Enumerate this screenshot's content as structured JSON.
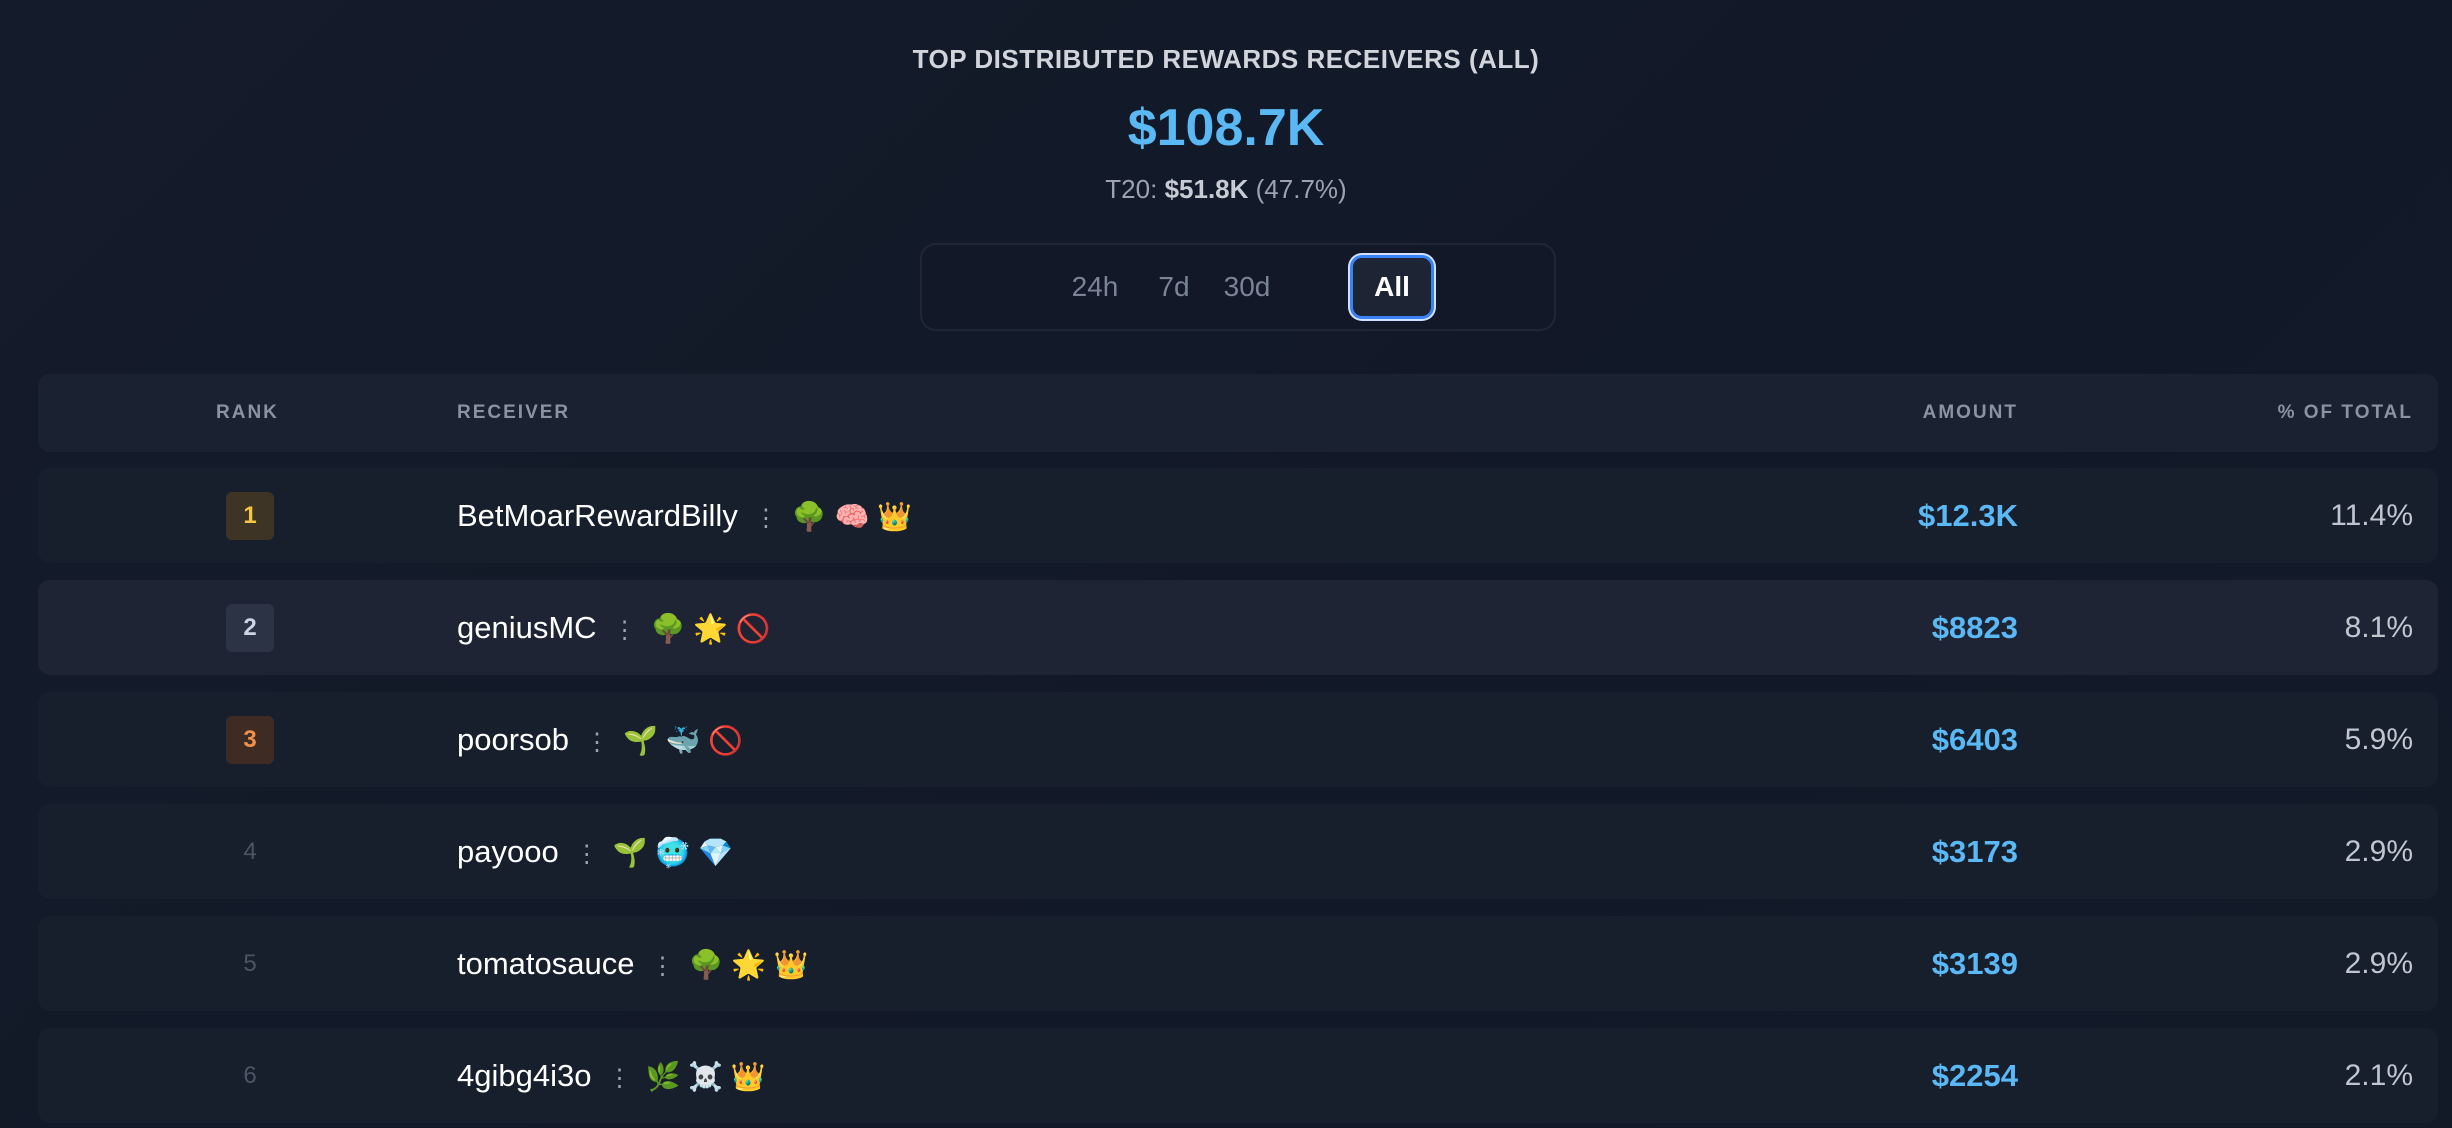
{
  "header": {
    "title": "TOP DISTRIBUTED REWARDS RECEIVERS (ALL)",
    "total": "$108.7K",
    "t20_label": "T20:",
    "t20_value": "$51.8K",
    "t20_pct": "(47.7%)"
  },
  "tabs": [
    {
      "label": "24h"
    },
    {
      "label": "7d"
    },
    {
      "label": "30d"
    },
    {
      "label": "All",
      "active": true
    }
  ],
  "columns": {
    "rank": "RANK",
    "receiver": "RECEIVER",
    "amount": "AMOUNT",
    "pct": "% OF TOTAL"
  },
  "colors": {
    "accent": "#5ab8f5",
    "gold": "#f5c542",
    "silver": "#cbd5e1",
    "bronze": "#f0904a"
  },
  "rows": [
    {
      "rank": "1",
      "name": "BetMoarRewardBilly",
      "badges": "🌳 🧠 👑",
      "amount": "$12.3K",
      "pct": "11.4%"
    },
    {
      "rank": "2",
      "name": "geniusMC",
      "badges": "🌳 🌟 🚫",
      "amount": "$8823",
      "pct": "8.1%"
    },
    {
      "rank": "3",
      "name": "poorsob",
      "badges": "🌱 🐳 🚫",
      "amount": "$6403",
      "pct": "5.9%"
    },
    {
      "rank": "4",
      "name": "payooo",
      "badges": "🌱 🥶 💎",
      "amount": "$3173",
      "pct": "2.9%"
    },
    {
      "rank": "5",
      "name": "tomatosauce",
      "badges": "🌳 🌟 👑",
      "amount": "$3139",
      "pct": "2.9%"
    },
    {
      "rank": "6",
      "name": "4gibg4i3o",
      "badges": "🌿 ☠️ 👑",
      "amount": "$2254",
      "pct": "2.1%"
    }
  ]
}
